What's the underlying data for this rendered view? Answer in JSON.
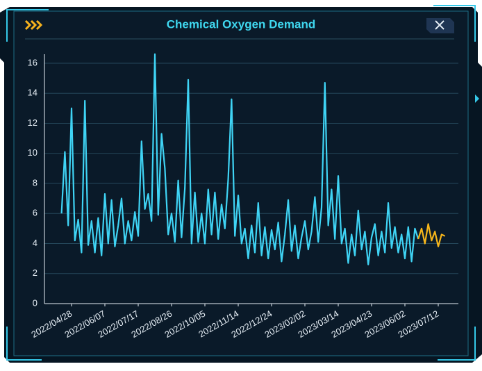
{
  "chart_data": {
    "type": "line",
    "title": "Chemical Oxygen Demand",
    "categories": [
      null,
      null,
      null,
      "2022/04/28",
      null,
      null,
      null,
      null,
      null,
      null,
      null,
      null,
      null,
      "2022/06/07",
      null,
      null,
      null,
      null,
      null,
      null,
      null,
      null,
      null,
      "2022/07/17",
      null,
      null,
      null,
      null,
      null,
      null,
      null,
      null,
      null,
      "2022/08/26",
      null,
      null,
      null,
      null,
      null,
      null,
      null,
      null,
      null,
      "2022/10/05",
      null,
      null,
      null,
      null,
      null,
      null,
      null,
      null,
      null,
      "2022/11/14",
      null,
      null,
      null,
      null,
      null,
      null,
      null,
      null,
      null,
      "2022/12/24",
      null,
      null,
      null,
      null,
      null,
      null,
      null,
      null,
      null,
      "2023/02/02",
      null,
      null,
      null,
      null,
      null,
      null,
      null,
      null,
      null,
      "2023/03/14",
      null,
      null,
      null,
      null,
      null,
      null,
      null,
      null,
      null,
      "2023/04/23",
      null,
      null,
      null,
      null,
      null,
      null,
      null,
      null,
      null,
      "2023/06/02",
      null,
      null,
      null,
      null,
      null,
      null,
      null,
      null,
      null,
      "2023/07/12",
      null,
      null
    ],
    "series": [
      {
        "color": "#3fd4f5",
        "values": [
          6.0,
          10.1,
          5.2,
          13.0,
          4.2,
          5.6,
          3.4,
          13.5,
          3.9,
          5.5,
          3.4,
          5.7,
          3.2,
          7.3,
          4.0,
          6.9,
          3.8,
          5.2,
          7.0,
          4.0,
          5.5,
          4.2,
          6.1,
          4.5,
          10.8,
          6.3,
          7.3,
          5.5,
          16.6,
          5.9,
          11.3,
          9.0,
          4.6,
          6.0,
          4.1,
          8.2,
          4.4,
          7.7,
          14.9,
          4.0,
          7.4,
          4.1,
          6.0,
          4.0,
          7.6,
          4.6,
          7.4,
          4.3,
          6.6,
          5.0,
          8.3,
          13.6,
          4.5,
          7.2,
          4.0,
          5.0,
          3.0,
          5.2,
          3.4,
          6.7,
          3.2,
          5.1,
          3.0,
          4.9,
          3.6,
          5.4,
          2.8,
          4.6,
          6.9,
          3.5,
          5.2,
          3.0,
          4.4,
          5.5,
          3.6,
          4.8,
          7.1,
          4.1,
          6.4,
          14.7,
          5.2,
          7.6,
          4.3,
          8.5,
          4.0,
          5.0,
          2.7,
          4.6,
          3.2,
          6.2,
          3.6,
          4.8,
          2.6,
          4.4,
          5.3,
          3.2,
          4.8,
          3.4,
          6.7,
          3.7,
          5.1,
          3.4,
          4.6,
          3.0,
          5.1,
          2.8,
          5.0,
          4.3,
          null,
          null,
          null,
          null,
          null,
          null,
          null,
          null
        ]
      },
      {
        "color": "#f5b51b",
        "values": [
          null,
          null,
          null,
          null,
          null,
          null,
          null,
          null,
          null,
          null,
          null,
          null,
          null,
          null,
          null,
          null,
          null,
          null,
          null,
          null,
          null,
          null,
          null,
          null,
          null,
          null,
          null,
          null,
          null,
          null,
          null,
          null,
          null,
          null,
          null,
          null,
          null,
          null,
          null,
          null,
          null,
          null,
          null,
          null,
          null,
          null,
          null,
          null,
          null,
          null,
          null,
          null,
          null,
          null,
          null,
          null,
          null,
          null,
          null,
          null,
          null,
          null,
          null,
          null,
          null,
          null,
          null,
          null,
          null,
          null,
          null,
          null,
          null,
          null,
          null,
          null,
          null,
          null,
          null,
          null,
          null,
          null,
          null,
          null,
          null,
          null,
          null,
          null,
          null,
          null,
          null,
          null,
          null,
          null,
          null,
          null,
          null,
          null,
          null,
          null,
          null,
          null,
          null,
          null,
          null,
          null,
          null,
          4.3,
          5.0,
          4.0,
          5.3,
          4.2,
          4.8,
          3.8,
          4.6,
          4.5
        ]
      }
    ],
    "ylim": [
      0,
      16.6
    ],
    "yticks": [
      0,
      2,
      4,
      6,
      8,
      10,
      12,
      14,
      16
    ],
    "grid": true
  }
}
